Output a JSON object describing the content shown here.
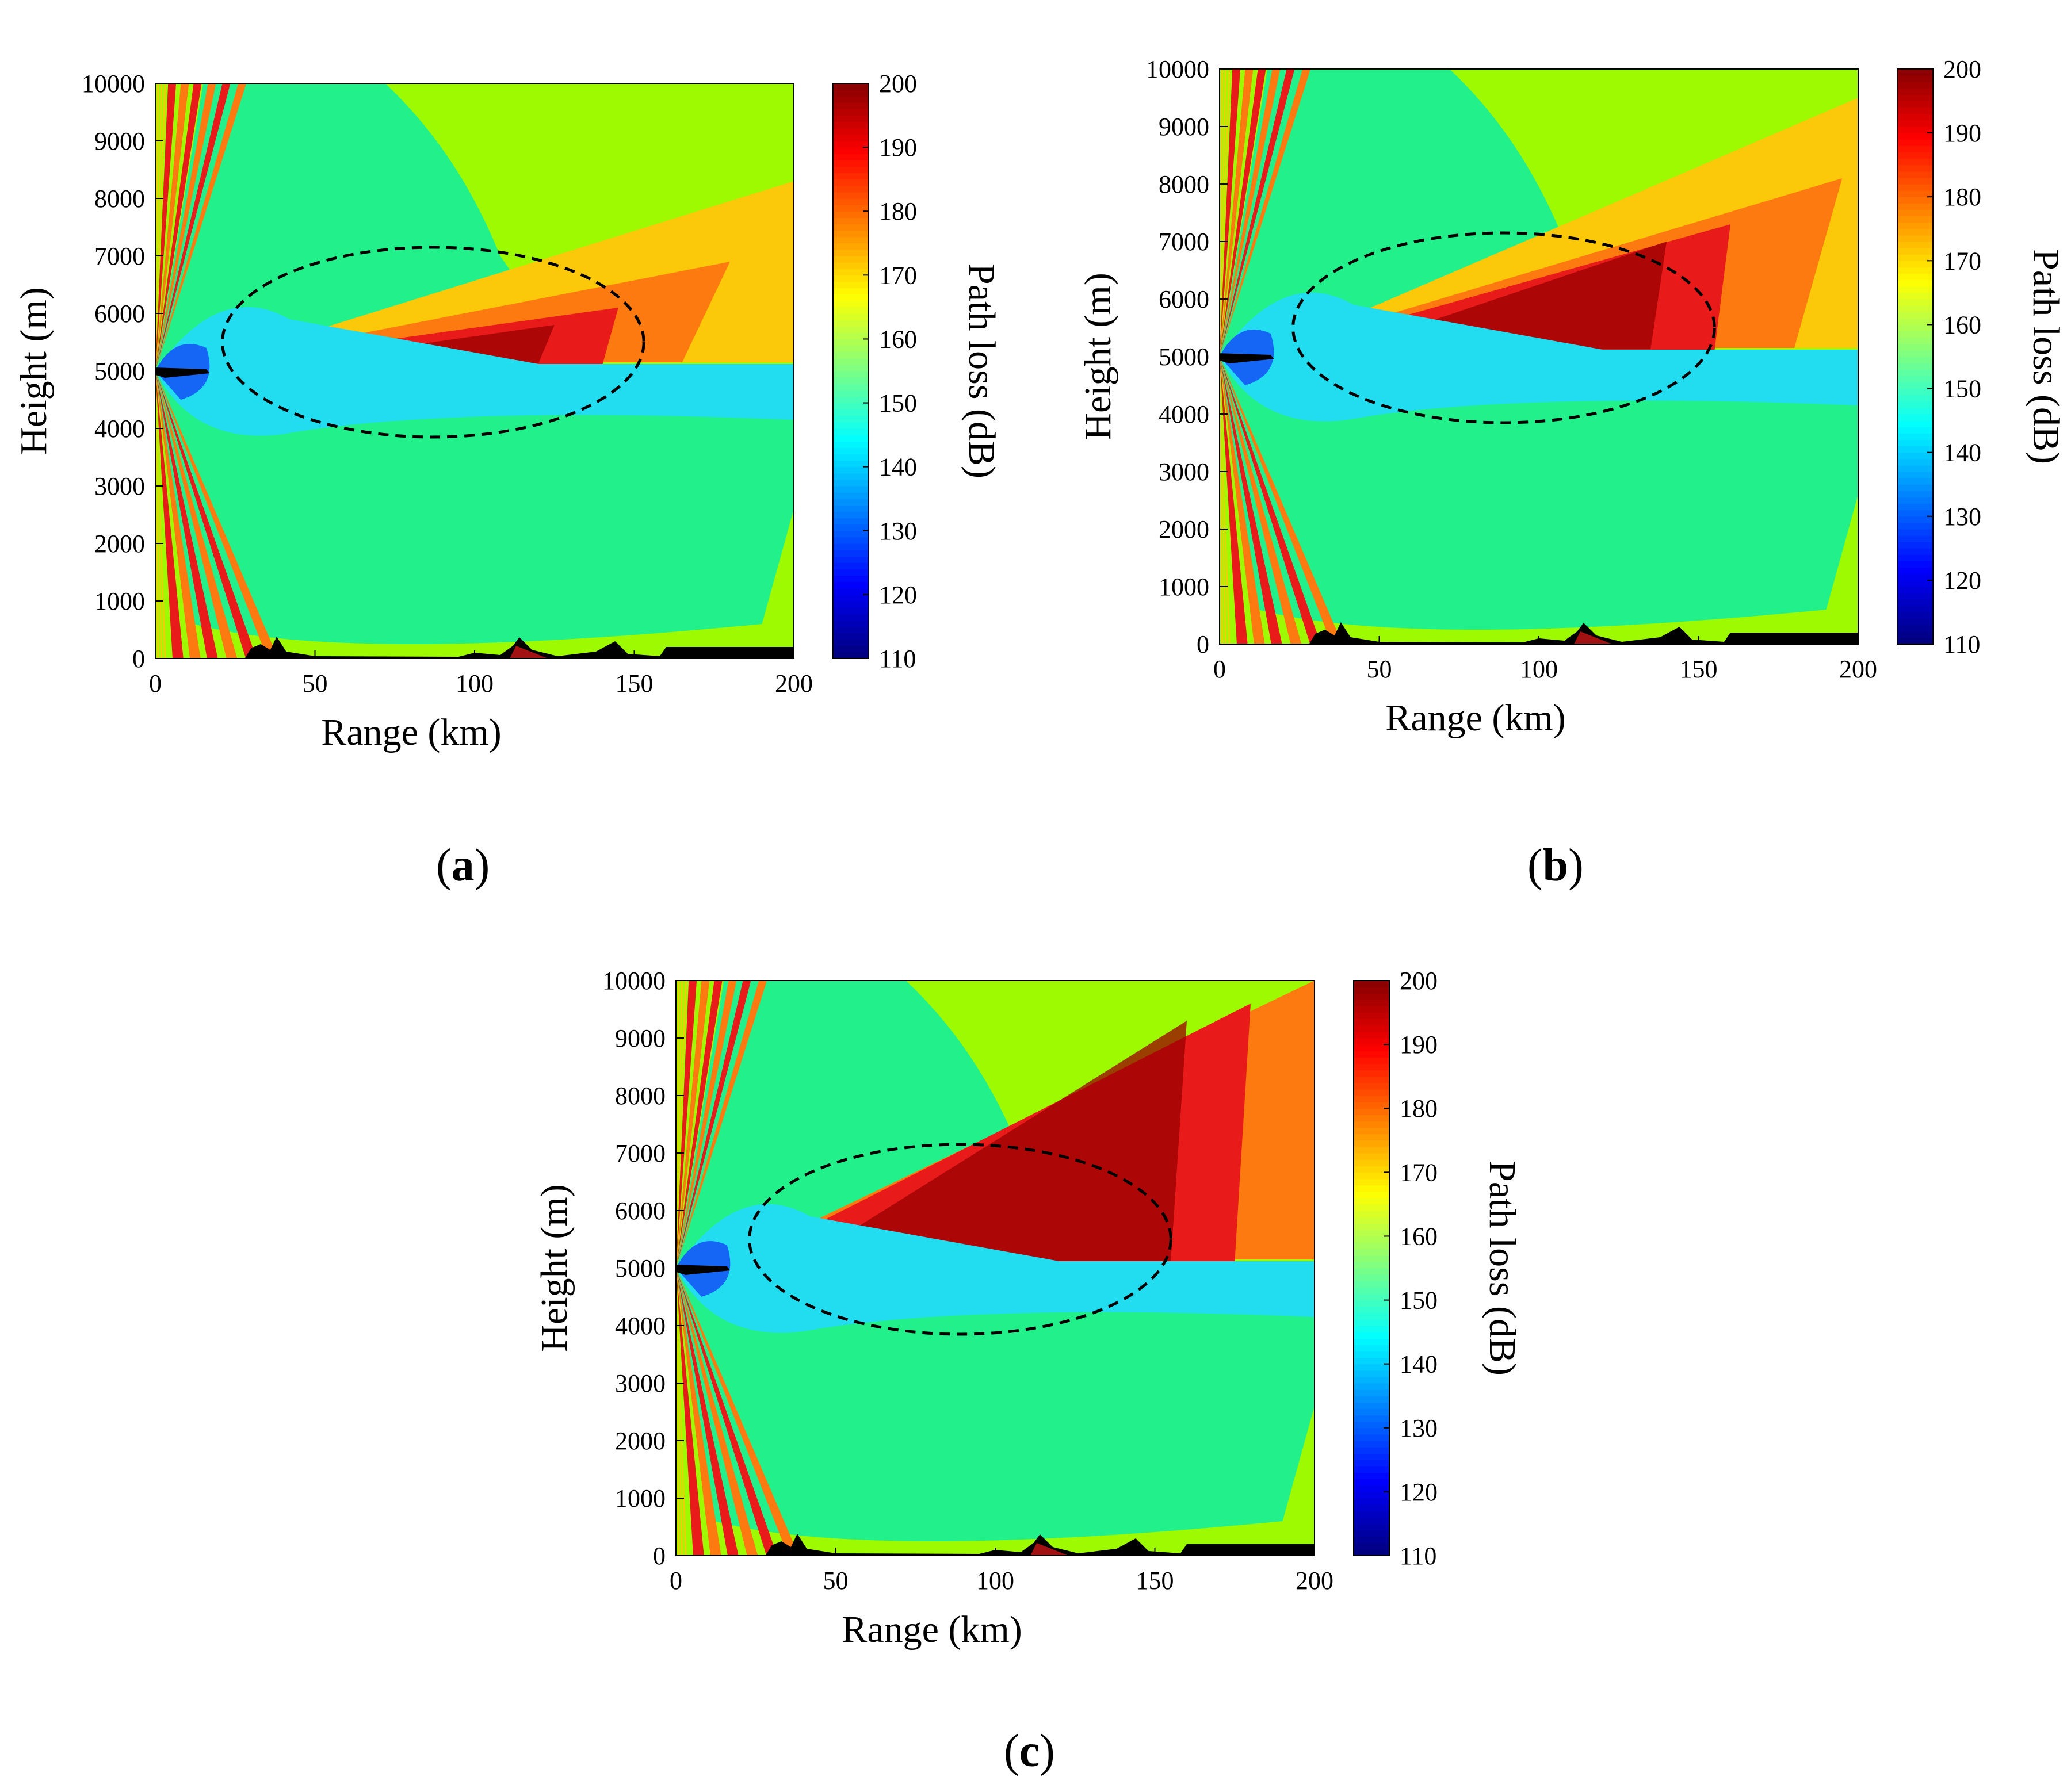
{
  "chart_data": [
    {
      "type": "heatmap",
      "panel_label": "a",
      "xlabel": "Range (km)",
      "ylabel": "Height (m)",
      "colorbar_label": "Path loss (dB)",
      "xlim": [
        0,
        200
      ],
      "ylim": [
        0,
        10000
      ],
      "clim": [
        110,
        200
      ],
      "xticks": [
        "0",
        "50",
        "100",
        "150",
        "200"
      ],
      "yticks": [
        "0",
        "1000",
        "2000",
        "3000",
        "4000",
        "5000",
        "6000",
        "7000",
        "8000",
        "9000",
        "10000"
      ],
      "cticks": [
        "110",
        "120",
        "130",
        "140",
        "150",
        "160",
        "170",
        "180",
        "190",
        "200"
      ],
      "source_height_m": 5000,
      "highlight_ellipse": {
        "center_km": 87,
        "center_m": 5500,
        "half_width_km": 66,
        "half_height_m": 1650
      },
      "hot_wedge_end": {
        "range_km": 155,
        "top_m": 6100,
        "peak_db": 195
      }
    },
    {
      "type": "heatmap",
      "panel_label": "b",
      "xlabel": "Range (km)",
      "ylabel": "Height (m)",
      "colorbar_label": "Path loss (dB)",
      "xlim": [
        0,
        200
      ],
      "ylim": [
        0,
        10000
      ],
      "clim": [
        110,
        200
      ],
      "xticks": [
        "0",
        "50",
        "100",
        "150",
        "200"
      ],
      "yticks": [
        "0",
        "1000",
        "2000",
        "3000",
        "4000",
        "5000",
        "6000",
        "7000",
        "8000",
        "9000",
        "10000"
      ],
      "cticks": [
        "110",
        "120",
        "130",
        "140",
        "150",
        "160",
        "170",
        "180",
        "190",
        "200"
      ],
      "source_height_m": 5000,
      "highlight_ellipse": {
        "center_km": 89,
        "center_m": 5500,
        "half_width_km": 66,
        "half_height_m": 1650
      },
      "hot_wedge_end": {
        "range_km": 170,
        "top_m": 7300,
        "peak_db": 198
      }
    },
    {
      "type": "heatmap",
      "panel_label": "c",
      "xlabel": "Range (km)",
      "ylabel": "Height (m)",
      "colorbar_label": "Path loss (dB)",
      "xlim": [
        0,
        200
      ],
      "ylim": [
        0,
        10000
      ],
      "clim": [
        110,
        200
      ],
      "xticks": [
        "0",
        "50",
        "100",
        "150",
        "200"
      ],
      "yticks": [
        "0",
        "1000",
        "2000",
        "3000",
        "4000",
        "5000",
        "6000",
        "7000",
        "8000",
        "9000",
        "10000"
      ],
      "cticks": [
        "110",
        "120",
        "130",
        "140",
        "150",
        "160",
        "170",
        "180",
        "190",
        "200"
      ],
      "source_height_m": 5000,
      "highlight_ellipse": {
        "center_km": 89,
        "center_m": 5500,
        "half_width_km": 66,
        "half_height_m": 1650
      },
      "hot_wedge_end": {
        "range_km": 190,
        "top_m": 9600,
        "peak_db": 199
      }
    }
  ],
  "colors": {
    "background_far": "#9efa00",
    "lobe_green": "#22f08a",
    "near_cyan": "#22dcf0",
    "near_blue": "#1566f5",
    "lobe_yellow": "#fcc80a",
    "lobe_orange": "#fc7a10",
    "lobe_red": "#e81a1a",
    "dark_red": "#9a0000",
    "terrain": "#000000",
    "ellipse": "#000000"
  }
}
